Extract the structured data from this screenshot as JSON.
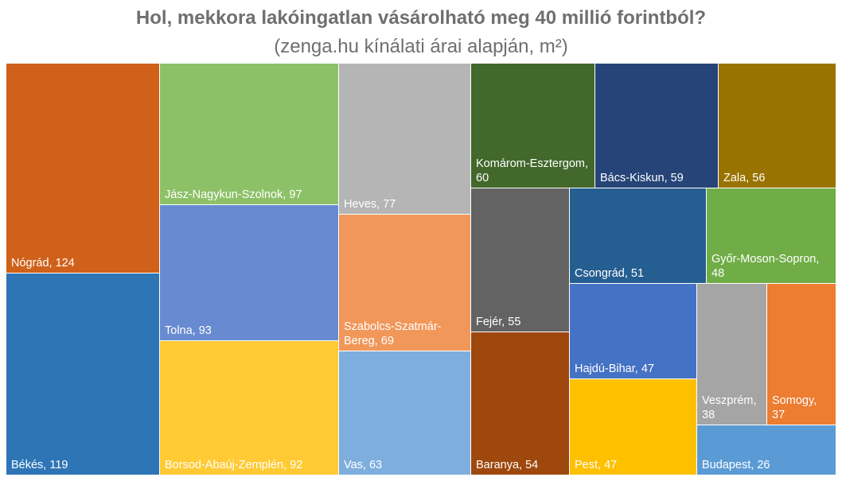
{
  "chart_data": {
    "type": "treemap",
    "title": "Hol, mekkora lakóingatlan vásárolható meg 40 millió forintból?",
    "subtitle": "(zenga.hu kínálati árai alapján, m²)",
    "values": [
      124,
      119,
      97,
      93,
      92,
      77,
      69,
      63,
      60,
      59,
      56,
      55,
      54,
      51,
      48,
      47,
      47,
      38,
      37,
      26
    ],
    "value_labels": [
      "Nógrád, 124",
      "Békés, 119",
      "Jász-Nagykun-Szolnok, 97",
      "Tolna, 93",
      "Borsod-Abaúj-Zemplén, 92",
      "Heves, 77",
      "Szabolcs-Szatmár-Bereg, 69",
      "Vas, 63",
      "Komárom-Esztergom, 60",
      "Bács-Kiskun, 59",
      "Zala, 56",
      "Fejér, 55",
      "Baranya, 54",
      "Csongrád, 51",
      "Győr-Moson-Sopron, 48",
      "Hajdú-Bihar, 47",
      "Pest, 47",
      "Veszprém, 38",
      "Somogy, 37",
      "Budapest, 26"
    ],
    "colors": [
      "#d0611a",
      "#2e75b6",
      "#8cc168",
      "#678ad0",
      "#ffca33",
      "#b5b5b5",
      "#f1975a",
      "#7eaede",
      "#43682b",
      "#264478",
      "#997300",
      "#636363",
      "#9e480e",
      "#255e91",
      "#70ad47",
      "#4472c4",
      "#ffc000",
      "#a5a5a5",
      "#ed7d31",
      "#5b9bd5"
    ]
  }
}
